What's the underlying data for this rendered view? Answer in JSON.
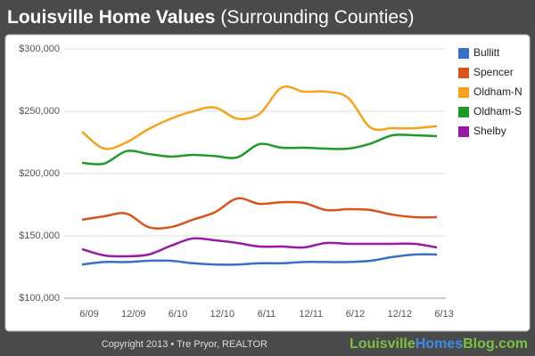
{
  "header": {
    "title": "Louisville Home Values",
    "subtitle": "(Surrounding Counties)"
  },
  "chart_data": {
    "type": "line",
    "categories": [
      "6/09",
      null,
      "12/09",
      null,
      "6/10",
      null,
      "12/10",
      null,
      "6/11",
      null,
      "12/11",
      null,
      "6/12",
      null,
      "12/12",
      null,
      "6/13"
    ],
    "series": [
      {
        "name": "Bullitt",
        "color": "#3a6fc8",
        "values": [
          127,
          129,
          129,
          130,
          130,
          128,
          127,
          127,
          128,
          128,
          129,
          129,
          129,
          130,
          133,
          135,
          135
        ]
      },
      {
        "name": "Spencer",
        "color": "#d9531e",
        "values": [
          162.9,
          165.7,
          167.9,
          157,
          157,
          163,
          169,
          180,
          175.7,
          177,
          176.4,
          170.7,
          171.4,
          170.7,
          167,
          165,
          165
        ]
      },
      {
        "name": "Oldham-N",
        "color": "#f7a21b",
        "values": [
          233.6,
          220,
          225,
          235.7,
          244,
          250,
          253,
          244,
          247.9,
          269,
          265.7,
          265.7,
          260.7,
          237,
          236.4,
          236.4,
          238
        ]
      },
      {
        "name": "Oldham-S",
        "color": "#1e9a2a",
        "values": [
          208.6,
          208,
          218,
          215.7,
          213.6,
          215,
          214,
          213,
          223.6,
          220.7,
          220.7,
          220,
          220,
          224,
          230.7,
          230.7,
          230
        ]
      },
      {
        "name": "Shelby",
        "color": "#9a1aa6",
        "values": [
          139.3,
          134.3,
          133.6,
          135,
          142,
          147.9,
          146.4,
          144.3,
          141.4,
          141.4,
          140.7,
          144.3,
          143.6,
          143.6,
          143.6,
          143.6,
          140.7
        ]
      }
    ],
    "ylim": [
      100,
      300
    ],
    "yticks": [
      {
        "value": 100,
        "label": "$100,000"
      },
      {
        "value": 150,
        "label": "$150,000"
      },
      {
        "value": 200,
        "label": "$200,000"
      },
      {
        "value": 250,
        "label": "$250,000"
      },
      {
        "value": 300,
        "label": "$300,000"
      }
    ],
    "grid": true,
    "legend": "right"
  },
  "footer": {
    "copyright": "Copyright 2013 • Tre Pryor, REALTOR",
    "site": [
      "Louisville",
      "Homes",
      "Blog.com"
    ]
  }
}
